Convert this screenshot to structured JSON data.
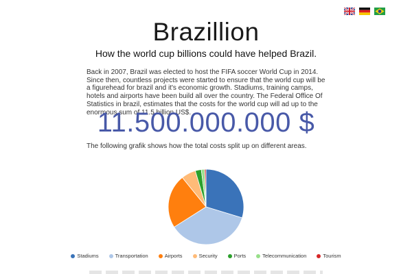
{
  "languages": [
    {
      "name": "english",
      "icon": "uk-flag-icon"
    },
    {
      "name": "german",
      "icon": "germany-flag-icon"
    },
    {
      "name": "portuguese",
      "icon": "brazil-flag-icon"
    }
  ],
  "header": {
    "title": "Brazillion",
    "subtitle": "How the world cup billions could have helped Brazil."
  },
  "intro": {
    "text": "Back in 2007, Brazil was elected to host the FIFA soccer World Cup in 2014. Since then, countless projects were started to ensure that the world cup will be a figurehead for brazil and it's economic growth. Stadiums, training camps, hotels and airports have been build all over the country. The Federal Office Of Statistics in brazil, estimates that the costs for the world cup will ad up to the enormous sum of 11.5 billion US$."
  },
  "total": {
    "amount": "11.500.000.000 $"
  },
  "chart_caption": "The following grafik shows how the total costs split up on different areas.",
  "chart_data": {
    "type": "pie",
    "title": "",
    "legend_position": "bottom",
    "categories": [
      "Stadiums",
      "Transportation",
      "Airports",
      "Security",
      "Ports",
      "Telecommunication",
      "Tourism"
    ],
    "values": [
      29.7,
      36.3,
      23.2,
      6.2,
      2.6,
      1.4,
      0.6
    ],
    "colors": [
      "#3a73b9",
      "#aec7e8",
      "#ff7f0e",
      "#ffbb78",
      "#2ca02c",
      "#98df8a",
      "#d62728"
    ]
  }
}
